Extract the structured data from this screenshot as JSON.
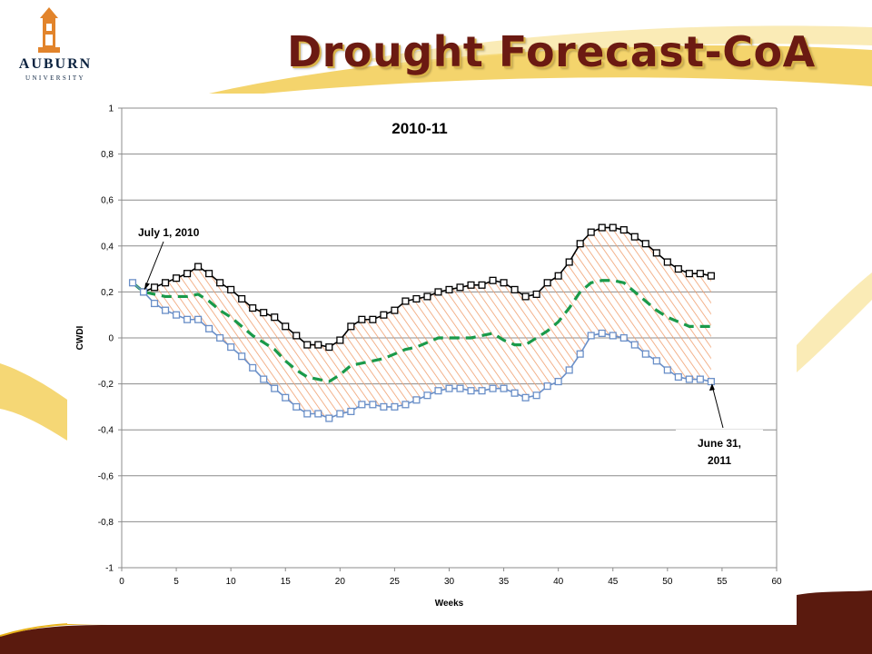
{
  "slide": {
    "title": "Drought Forecast-CoA",
    "logo_word": "AUBURN",
    "logo_sub": "UNIVERSITY",
    "colors": {
      "title": "#6b1a12",
      "maroon": "#5a1a0e",
      "gold": "#e8b21a"
    }
  },
  "chart_data": {
    "type": "line",
    "title": "2010-11",
    "xlabel": "Weeks",
    "ylabel": "CWDI",
    "xlim": [
      0,
      60
    ],
    "ylim": [
      -1,
      1
    ],
    "x_ticks": [
      "0",
      "5",
      "10",
      "15",
      "20",
      "25",
      "30",
      "35",
      "40",
      "45",
      "50",
      "55",
      "60"
    ],
    "y_ticks": [
      "1",
      "0,8",
      "0,6",
      "0,4",
      "0,2",
      "0",
      "-0,2",
      "-0,4",
      "-0,6",
      "-0,8",
      "-1"
    ],
    "grid": true,
    "legend": "none",
    "band_fill": "hatched band between upper and lower series",
    "series": [
      {
        "color": "#000000",
        "style": "solid",
        "marker": "square",
        "x": [
          2,
          3,
          4,
          5,
          6,
          7,
          8,
          9,
          10,
          11,
          12,
          13,
          14,
          15,
          16,
          17,
          18,
          19,
          20,
          21,
          22,
          23,
          24,
          25,
          26,
          27,
          28,
          29,
          30,
          31,
          32,
          33,
          34,
          35,
          36,
          37,
          38,
          39,
          40,
          41,
          42,
          43,
          44,
          45,
          46,
          47,
          48,
          49,
          50,
          51,
          52,
          53,
          54
        ],
        "values": [
          0.2,
          0.22,
          0.24,
          0.26,
          0.28,
          0.31,
          0.28,
          0.24,
          0.21,
          0.17,
          0.13,
          0.11,
          0.09,
          0.05,
          0.01,
          -0.03,
          -0.03,
          -0.04,
          -0.01,
          0.05,
          0.08,
          0.08,
          0.1,
          0.12,
          0.16,
          0.17,
          0.18,
          0.2,
          0.21,
          0.22,
          0.23,
          0.23,
          0.25,
          0.24,
          0.21,
          0.18,
          0.19,
          0.24,
          0.27,
          0.33,
          0.41,
          0.46,
          0.48,
          0.48,
          0.47,
          0.44,
          0.41,
          0.37,
          0.33,
          0.3,
          0.28,
          0.28,
          0.27
        ]
      },
      {
        "color": "#1a9a4a",
        "style": "dashed",
        "marker": "none",
        "x": [
          1,
          2,
          3,
          4,
          5,
          6,
          7,
          8,
          9,
          10,
          11,
          12,
          13,
          14,
          15,
          16,
          17,
          18,
          19,
          20,
          21,
          22,
          23,
          24,
          25,
          26,
          27,
          28,
          29,
          30,
          31,
          32,
          33,
          34,
          35,
          36,
          37,
          38,
          39,
          40,
          41,
          42,
          43,
          44,
          45,
          46,
          47,
          48,
          49,
          50,
          51,
          52,
          53,
          54
        ],
        "values": [
          0.24,
          0.2,
          0.19,
          0.18,
          0.18,
          0.18,
          0.19,
          0.16,
          0.12,
          0.09,
          0.05,
          0.01,
          -0.02,
          -0.05,
          -0.1,
          -0.14,
          -0.17,
          -0.18,
          -0.19,
          -0.16,
          -0.12,
          -0.11,
          -0.1,
          -0.09,
          -0.07,
          -0.05,
          -0.04,
          -0.02,
          0.0,
          0.0,
          0.0,
          0.0,
          0.01,
          0.02,
          -0.01,
          -0.03,
          -0.03,
          0.0,
          0.03,
          0.07,
          0.13,
          0.2,
          0.24,
          0.25,
          0.25,
          0.24,
          0.2,
          0.16,
          0.12,
          0.09,
          0.07,
          0.05,
          0.05,
          0.05
        ]
      },
      {
        "color": "#6a8fc8",
        "style": "solid",
        "marker": "square",
        "x": [
          1,
          2,
          3,
          4,
          5,
          6,
          7,
          8,
          9,
          10,
          11,
          12,
          13,
          14,
          15,
          16,
          17,
          18,
          19,
          20,
          21,
          22,
          23,
          24,
          25,
          26,
          27,
          28,
          29,
          30,
          31,
          32,
          33,
          34,
          35,
          36,
          37,
          38,
          39,
          40,
          41,
          42,
          43,
          44,
          45,
          46,
          47,
          48,
          49,
          50,
          51,
          52,
          53,
          54
        ],
        "values": [
          0.24,
          0.2,
          0.15,
          0.12,
          0.1,
          0.08,
          0.08,
          0.04,
          0.0,
          -0.04,
          -0.08,
          -0.13,
          -0.18,
          -0.22,
          -0.26,
          -0.3,
          -0.33,
          -0.33,
          -0.35,
          -0.33,
          -0.32,
          -0.29,
          -0.29,
          -0.3,
          -0.3,
          -0.29,
          -0.27,
          -0.25,
          -0.23,
          -0.22,
          -0.22,
          -0.23,
          -0.23,
          -0.22,
          -0.22,
          -0.24,
          -0.26,
          -0.25,
          -0.21,
          -0.19,
          -0.14,
          -0.07,
          0.01,
          0.02,
          0.01,
          0.0,
          -0.03,
          -0.07,
          -0.1,
          -0.14,
          -0.17,
          -0.18,
          -0.18,
          -0.19
        ]
      }
    ],
    "annotations": [
      {
        "text": "July 1, 2010",
        "x": 2,
        "y": 0.2
      },
      {
        "text": "June 31,\n2011",
        "x": 54,
        "y": -0.19
      }
    ]
  }
}
